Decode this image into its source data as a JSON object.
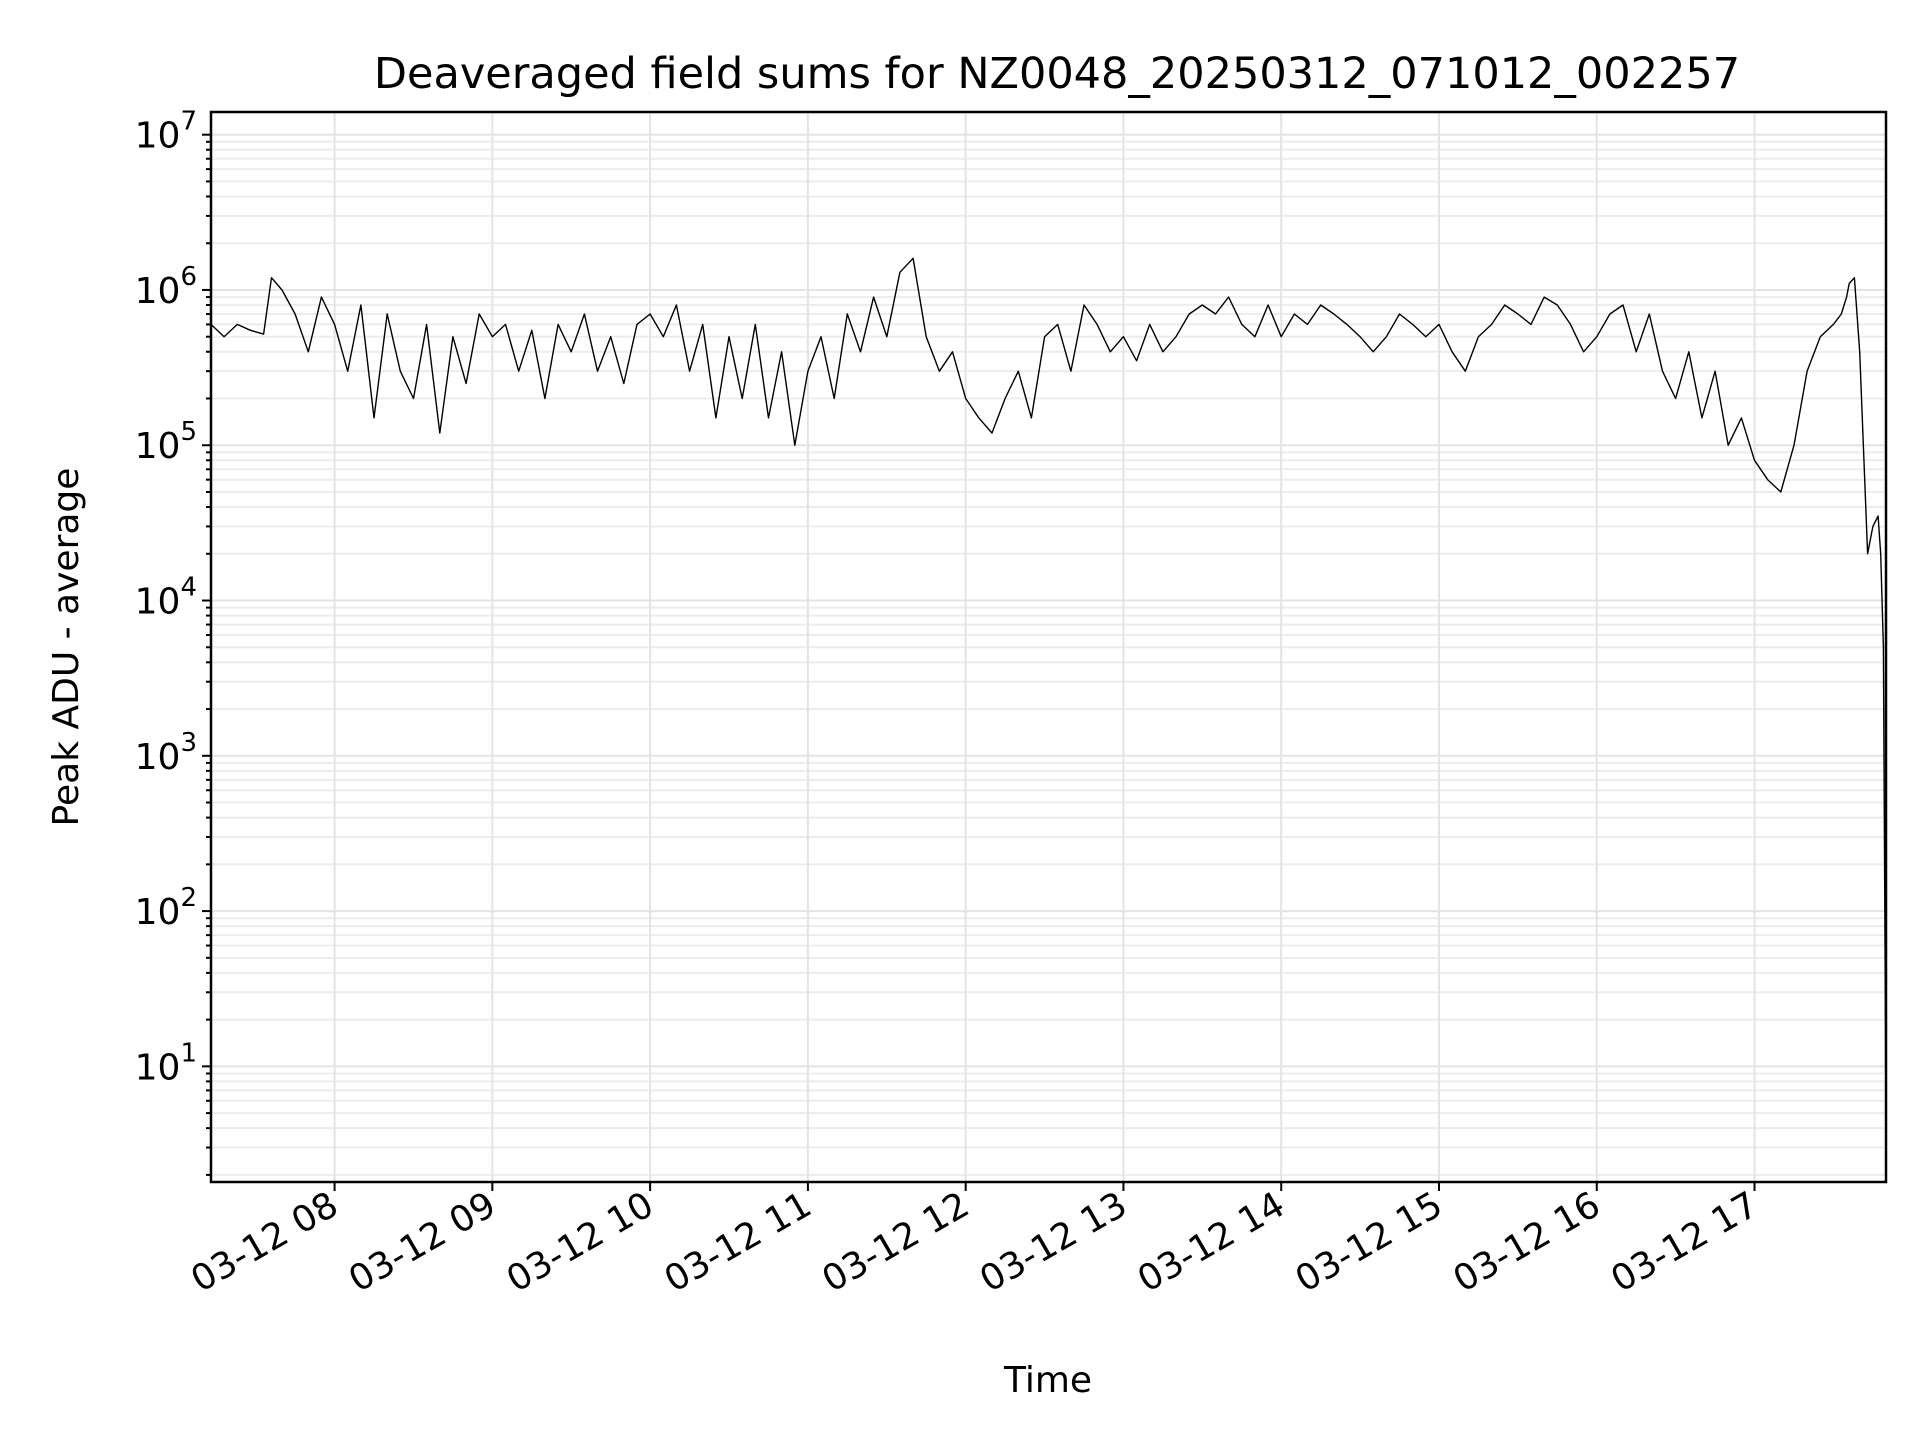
{
  "chart_data": {
    "type": "line",
    "title": "Deaveraged field sums for NZ0048_20250312_071012_002257",
    "xlabel": "Time",
    "ylabel": "Peak ADU - average",
    "x_tick_labels": [
      "03-12 08",
      "03-12 09",
      "03-12 10",
      "03-12 11",
      "03-12 12",
      "03-12 13",
      "03-12 14",
      "03-12 15",
      "03-12 16",
      "03-12 17"
    ],
    "x_ticks": [
      "2025-03-12 08:00",
      "2025-03-12 09:00",
      "2025-03-12 10:00",
      "2025-03-12 11:00",
      "2025-03-12 12:00",
      "2025-03-12 13:00",
      "2025-03-12 14:00",
      "2025-03-12 15:00",
      "2025-03-12 16:00",
      "2025-03-12 17:00"
    ],
    "xlim": [
      "2025-03-12 07:13",
      "2025-03-12 17:50"
    ],
    "y_scale": "log",
    "ylim": [
      1.8,
      14000000
    ],
    "y_tick_exponents": [
      "1",
      "2",
      "3",
      "4",
      "5",
      "6",
      "7"
    ],
    "y_tick_base": "10",
    "grid": true,
    "line_color": "#000000",
    "series": [
      {
        "x": [
          "2025-03-12 07:13",
          "2025-03-12 07:18",
          "2025-03-12 07:23",
          "2025-03-12 07:28",
          "2025-03-12 07:33",
          "2025-03-12 07:36",
          "2025-03-12 07:40",
          "2025-03-12 07:45",
          "2025-03-12 07:50",
          "2025-03-12 07:55",
          "2025-03-12 08:00",
          "2025-03-12 08:05",
          "2025-03-12 08:10",
          "2025-03-12 08:15",
          "2025-03-12 08:20",
          "2025-03-12 08:25",
          "2025-03-12 08:30",
          "2025-03-12 08:35",
          "2025-03-12 08:40",
          "2025-03-12 08:45",
          "2025-03-12 08:50",
          "2025-03-12 08:55",
          "2025-03-12 09:00",
          "2025-03-12 09:05",
          "2025-03-12 09:10",
          "2025-03-12 09:15",
          "2025-03-12 09:20",
          "2025-03-12 09:25",
          "2025-03-12 09:30",
          "2025-03-12 09:35",
          "2025-03-12 09:40",
          "2025-03-12 09:45",
          "2025-03-12 09:50",
          "2025-03-12 09:55",
          "2025-03-12 10:00",
          "2025-03-12 10:05",
          "2025-03-12 10:10",
          "2025-03-12 10:15",
          "2025-03-12 10:20",
          "2025-03-12 10:25",
          "2025-03-12 10:30",
          "2025-03-12 10:35",
          "2025-03-12 10:40",
          "2025-03-12 10:45",
          "2025-03-12 10:50",
          "2025-03-12 10:55",
          "2025-03-12 11:00",
          "2025-03-12 11:05",
          "2025-03-12 11:10",
          "2025-03-12 11:15",
          "2025-03-12 11:20",
          "2025-03-12 11:25",
          "2025-03-12 11:30",
          "2025-03-12 11:35",
          "2025-03-12 11:40",
          "2025-03-12 11:45",
          "2025-03-12 11:50",
          "2025-03-12 11:55",
          "2025-03-12 12:00",
          "2025-03-12 12:05",
          "2025-03-12 12:10",
          "2025-03-12 12:15",
          "2025-03-12 12:20",
          "2025-03-12 12:25",
          "2025-03-12 12:30",
          "2025-03-12 12:35",
          "2025-03-12 12:40",
          "2025-03-12 12:45",
          "2025-03-12 12:50",
          "2025-03-12 12:55",
          "2025-03-12 13:00",
          "2025-03-12 13:05",
          "2025-03-12 13:10",
          "2025-03-12 13:15",
          "2025-03-12 13:20",
          "2025-03-12 13:25",
          "2025-03-12 13:30",
          "2025-03-12 13:35",
          "2025-03-12 13:40",
          "2025-03-12 13:45",
          "2025-03-12 13:50",
          "2025-03-12 13:55",
          "2025-03-12 14:00",
          "2025-03-12 14:05",
          "2025-03-12 14:10",
          "2025-03-12 14:15",
          "2025-03-12 14:20",
          "2025-03-12 14:25",
          "2025-03-12 14:30",
          "2025-03-12 14:35",
          "2025-03-12 14:40",
          "2025-03-12 14:45",
          "2025-03-12 14:50",
          "2025-03-12 14:55",
          "2025-03-12 15:00",
          "2025-03-12 15:05",
          "2025-03-12 15:10",
          "2025-03-12 15:15",
          "2025-03-12 15:20",
          "2025-03-12 15:25",
          "2025-03-12 15:30",
          "2025-03-12 15:35",
          "2025-03-12 15:40",
          "2025-03-12 15:45",
          "2025-03-12 15:50",
          "2025-03-12 15:55",
          "2025-03-12 16:00",
          "2025-03-12 16:05",
          "2025-03-12 16:10",
          "2025-03-12 16:15",
          "2025-03-12 16:20",
          "2025-03-12 16:25",
          "2025-03-12 16:30",
          "2025-03-12 16:35",
          "2025-03-12 16:40",
          "2025-03-12 16:45",
          "2025-03-12 16:50",
          "2025-03-12 16:55",
          "2025-03-12 17:00",
          "2025-03-12 17:05",
          "2025-03-12 17:10",
          "2025-03-12 17:15",
          "2025-03-12 17:20",
          "2025-03-12 17:25",
          "2025-03-12 17:30",
          "2025-03-12 17:33",
          "2025-03-12 17:35",
          "2025-03-12 17:36",
          "2025-03-12 17:38",
          "2025-03-12 17:40",
          "2025-03-12 17:43",
          "2025-03-12 17:45",
          "2025-03-12 17:47",
          "2025-03-12 17:48",
          "2025-03-12 17:49",
          "2025-03-12 17:50"
        ],
        "values": [
          600000,
          500000,
          600000,
          550000,
          520000,
          1200000,
          1000000,
          700000,
          400000,
          900000,
          600000,
          300000,
          800000,
          150000,
          700000,
          300000,
          200000,
          600000,
          120000,
          500000,
          250000,
          700000,
          500000,
          600000,
          300000,
          550000,
          200000,
          600000,
          400000,
          700000,
          300000,
          500000,
          250000,
          600000,
          700000,
          500000,
          800000,
          300000,
          600000,
          150000,
          500000,
          200000,
          600000,
          150000,
          400000,
          100000,
          300000,
          500000,
          200000,
          700000,
          400000,
          900000,
          500000,
          1300000,
          1600000,
          500000,
          300000,
          400000,
          200000,
          150000,
          120000,
          200000,
          300000,
          150000,
          500000,
          600000,
          300000,
          800000,
          600000,
          400000,
          500000,
          350000,
          600000,
          400000,
          500000,
          700000,
          800000,
          700000,
          900000,
          600000,
          500000,
          800000,
          500000,
          700000,
          600000,
          800000,
          700000,
          600000,
          500000,
          400000,
          500000,
          700000,
          600000,
          500000,
          600000,
          400000,
          300000,
          500000,
          600000,
          800000,
          700000,
          600000,
          900000,
          800000,
          600000,
          400000,
          500000,
          700000,
          800000,
          400000,
          700000,
          300000,
          200000,
          400000,
          150000,
          300000,
          100000,
          150000,
          80000,
          60000,
          50000,
          100000,
          300000,
          500000,
          600000,
          700000,
          900000,
          1100000,
          1200000,
          400000,
          20000,
          30000,
          35000,
          20000,
          5000,
          4
        ]
      }
    ]
  }
}
